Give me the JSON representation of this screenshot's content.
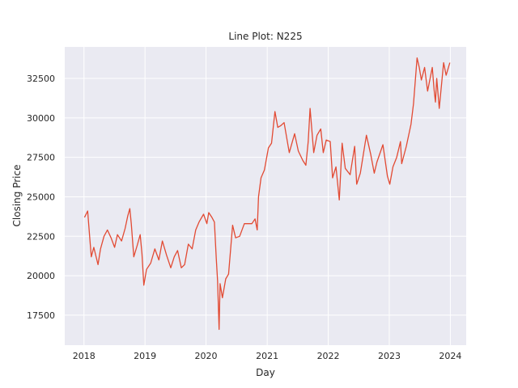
{
  "chart_data": {
    "type": "line",
    "title": "Line Plot: N225",
    "xlabel": "Day",
    "ylabel": "Closing Price",
    "x_ticks": [
      "2018",
      "2019",
      "2020",
      "2021",
      "2022",
      "2023",
      "2024"
    ],
    "y_ticks": [
      17500,
      20000,
      22500,
      25000,
      27500,
      30000,
      32500
    ],
    "xlim": [
      "2017-09-08",
      "2024-04-05"
    ],
    "ylim": [
      15600,
      34500
    ],
    "grid": true,
    "legend": "none",
    "series_color": "#e24a33",
    "background_color": "#eaeaf2",
    "series": [
      {
        "x": [
          "2018-01-04",
          "2018-01-23",
          "2018-02-06",
          "2018-02-14",
          "2018-03-01",
          "2018-03-26",
          "2018-04-10",
          "2018-05-01",
          "2018-05-21",
          "2018-06-12",
          "2018-07-03",
          "2018-07-20",
          "2018-08-14",
          "2018-09-04",
          "2018-09-20",
          "2018-10-02",
          "2018-10-11",
          "2018-10-26",
          "2018-11-15",
          "2018-12-03",
          "2018-12-14",
          "2018-12-25",
          "2019-01-10",
          "2019-02-04",
          "2019-03-01",
          "2019-03-25",
          "2019-04-15",
          "2019-05-10",
          "2019-06-04",
          "2019-06-25",
          "2019-07-15",
          "2019-08-06",
          "2019-08-26",
          "2019-09-17",
          "2019-10-10",
          "2019-10-31",
          "2019-11-20",
          "2019-12-17",
          "2020-01-06",
          "2020-01-17",
          "2020-02-05",
          "2020-02-20",
          "2020-03-02",
          "2020-03-10",
          "2020-03-19",
          "2020-03-25",
          "2020-04-08",
          "2020-04-28",
          "2020-05-15",
          "2020-06-08",
          "2020-06-26",
          "2020-07-20",
          "2020-08-17",
          "2020-09-08",
          "2020-10-01",
          "2020-10-20",
          "2020-11-02",
          "2020-11-10",
          "2020-11-25",
          "2020-12-15",
          "2021-01-08",
          "2021-01-27",
          "2021-02-16",
          "2021-03-05",
          "2021-03-22",
          "2021-04-12",
          "2021-05-13",
          "2021-06-14",
          "2021-07-06",
          "2021-08-02",
          "2021-08-20",
          "2021-09-03",
          "2021-09-14",
          "2021-10-06",
          "2021-10-26",
          "2021-11-17",
          "2021-12-02",
          "2021-12-20",
          "2022-01-13",
          "2022-01-27",
          "2022-02-16",
          "2022-03-08",
          "2022-03-25",
          "2022-04-13",
          "2022-05-12",
          "2022-06-08",
          "2022-06-20",
          "2022-07-12",
          "2022-08-17",
          "2022-09-12",
          "2022-10-03",
          "2022-10-19",
          "2022-11-24",
          "2022-12-21",
          "2023-01-04",
          "2023-01-23",
          "2023-02-14",
          "2023-03-09",
          "2023-03-16",
          "2023-04-13",
          "2023-05-11",
          "2023-05-26",
          "2023-06-16",
          "2023-06-29",
          "2023-07-12",
          "2023-07-31",
          "2023-08-18",
          "2023-09-15",
          "2023-09-26",
          "2023-10-04",
          "2023-10-12",
          "2023-10-27",
          "2023-11-22",
          "2023-12-07",
          "2023-12-29"
        ],
        "y": [
          23700,
          24100,
          22200,
          21200,
          21800,
          20700,
          21700,
          22500,
          22900,
          22400,
          21800,
          22600,
          22200,
          23000,
          23800,
          24250,
          23300,
          21200,
          21900,
          22600,
          21400,
          19400,
          20400,
          20800,
          21700,
          21000,
          22200,
          21300,
          20500,
          21200,
          21600,
          20500,
          20700,
          22000,
          21700,
          22900,
          23400,
          23900,
          23300,
          24000,
          23700,
          23400,
          21100,
          19700,
          16600,
          19500,
          18600,
          19800,
          20100,
          23200,
          22400,
          22500,
          23300,
          23300,
          23300,
          23600,
          22900,
          25000,
          26200,
          26700,
          28100,
          28400,
          30400,
          29400,
          29500,
          29700,
          27800,
          29000,
          27900,
          27300,
          27000,
          28500,
          30600,
          27800,
          28900,
          29300,
          27800,
          28600,
          28500,
          26200,
          26900,
          24800,
          28400,
          26800,
          26400,
          28200,
          25800,
          26500,
          28900,
          27700,
          26500,
          27200,
          28300,
          26300,
          25800,
          26900,
          27500,
          28500,
          27100,
          28200,
          29600,
          30900,
          33800,
          33200,
          32400,
          33200,
          31700,
          33200,
          31800,
          31000,
          32500,
          30600,
          33500,
          32700,
          33500
        ]
      }
    ]
  }
}
